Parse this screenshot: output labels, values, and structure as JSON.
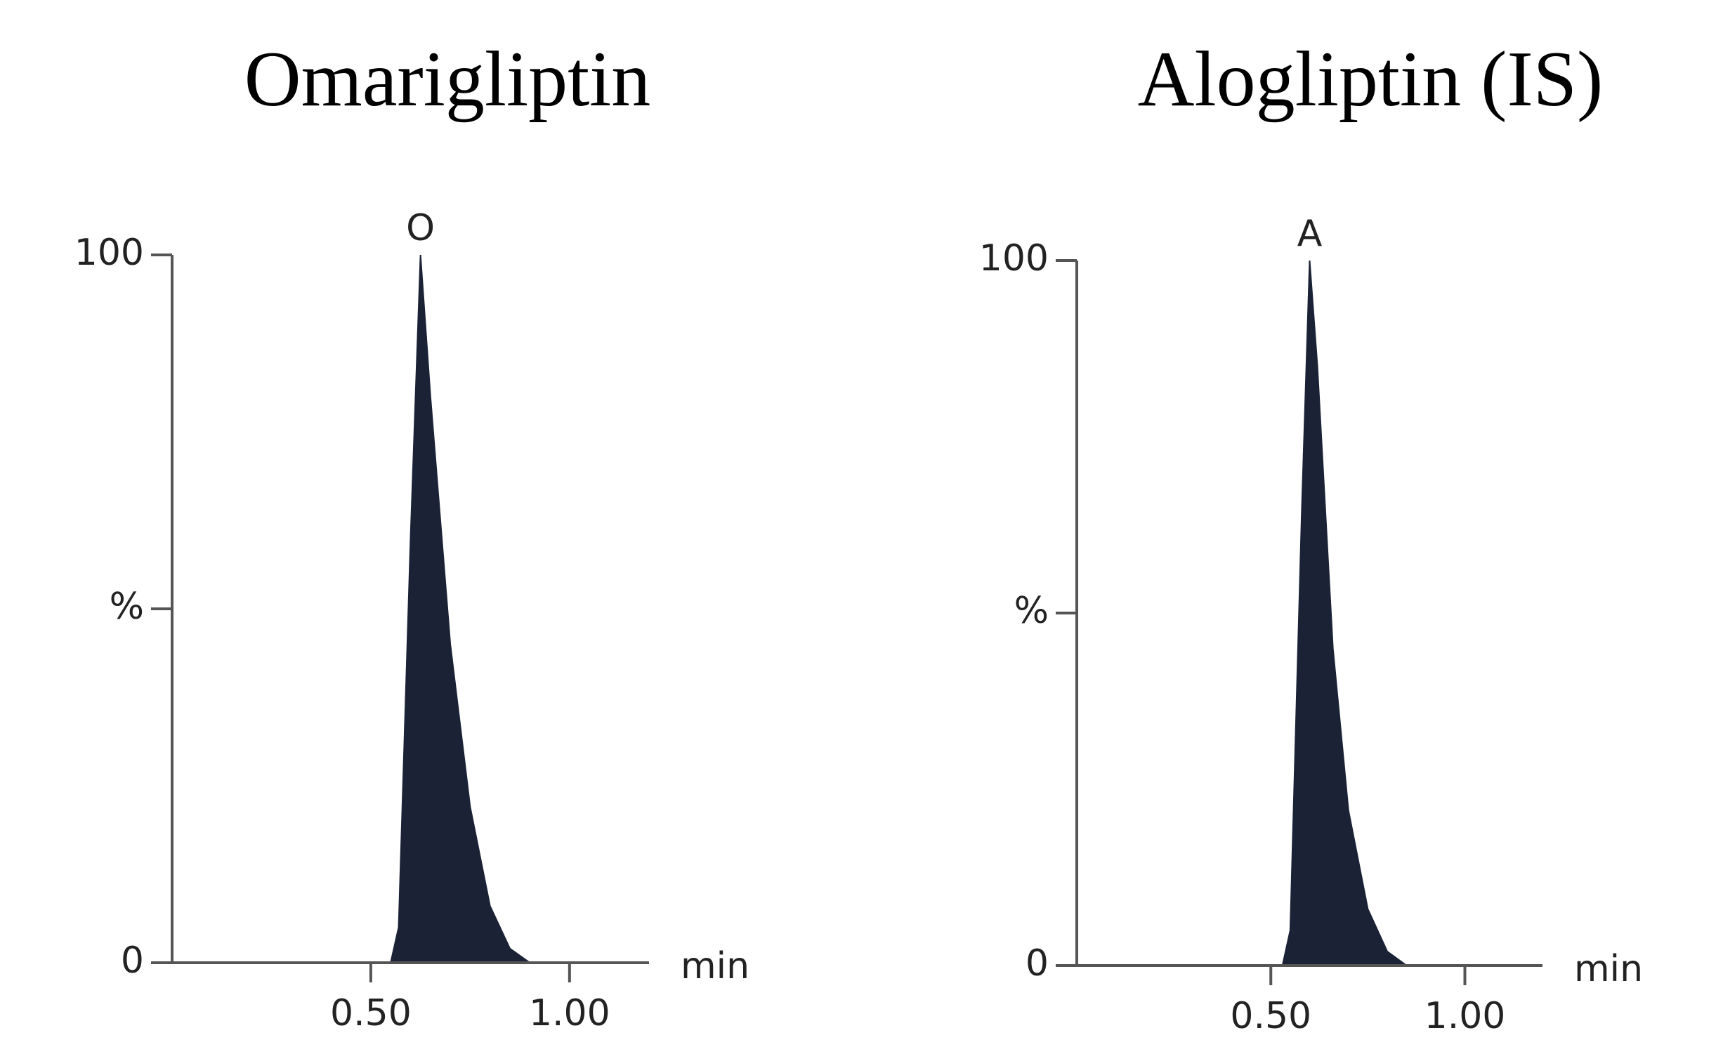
{
  "chart_data": [
    {
      "type": "area",
      "title": "Omarigliptin",
      "annotation": "O",
      "x_label": "min",
      "color": "#1b2236",
      "series": [
        {
          "name": "Omarigliptin",
          "color": "#1b2236",
          "x": [
            0,
            0.3,
            0.55,
            0.57,
            0.6,
            0.625,
            0.65,
            0.7,
            0.75,
            0.8,
            0.85,
            0.9,
            1.2
          ],
          "values": [
            0,
            0,
            0,
            5,
            60,
            100,
            80,
            45,
            22,
            8,
            2,
            0,
            0
          ]
        }
      ],
      "xlim": [
        0,
        1.2
      ],
      "xticks": [
        {
          "value": 0.5,
          "label": "0.50"
        },
        {
          "value": 1.0,
          "label": "1.00"
        }
      ],
      "ylim": [
        0,
        100
      ],
      "yticks": [
        0,
        {
          "value": 50,
          "label": "%"
        },
        100
      ]
    },
    {
      "type": "area",
      "title": "Alogliptin (IS)",
      "annotation": "A",
      "x_label": "min",
      "color": "#1b2236",
      "series": [
        {
          "name": "Alogliptin (IS)",
          "color": "#1b2236",
          "x": [
            0,
            0.3,
            0.53,
            0.55,
            0.58,
            0.6,
            0.62,
            0.66,
            0.7,
            0.75,
            0.8,
            0.85,
            1.2
          ],
          "values": [
            0,
            0,
            0,
            5,
            65,
            100,
            85,
            45,
            22,
            8,
            2,
            0,
            0
          ]
        }
      ],
      "xlim": [
        0,
        1.2
      ],
      "xticks": [
        {
          "value": 0.5,
          "label": "0.50"
        },
        {
          "value": 1.0,
          "label": "1.00"
        }
      ],
      "ylim": [
        0,
        100
      ],
      "yticks": [
        0,
        {
          "value": 50,
          "label": "%"
        },
        100
      ]
    }
  ]
}
